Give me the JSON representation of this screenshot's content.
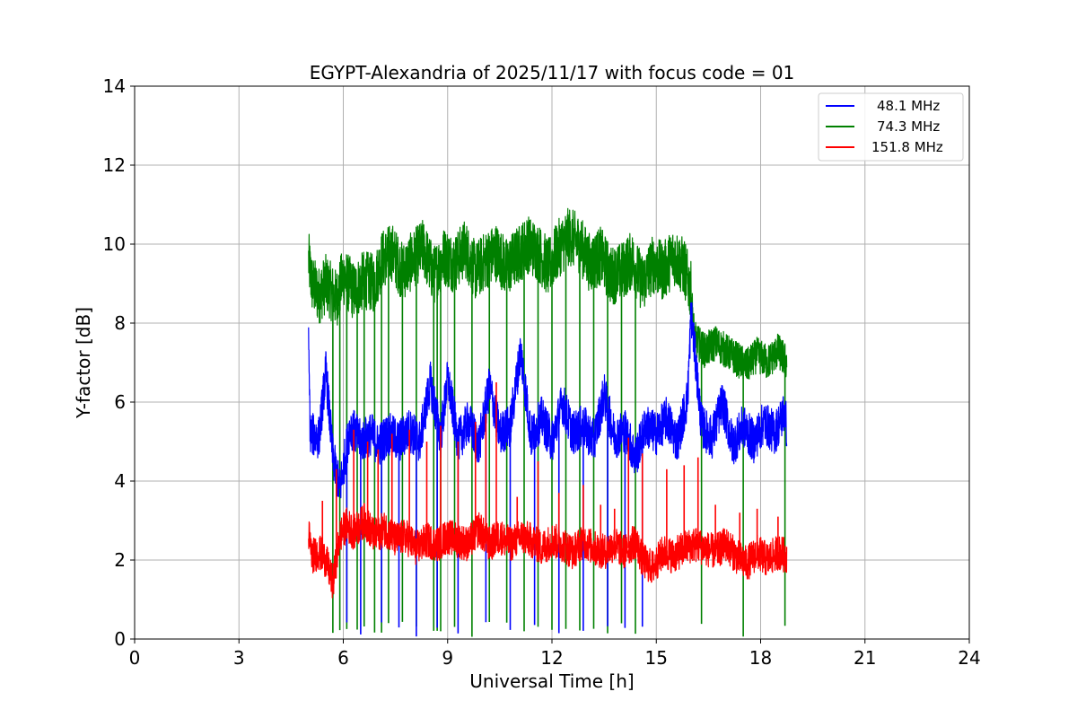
{
  "chart_data": {
    "type": "line",
    "title": "EGYPT-Alexandria of 2025/11/17 with focus code = 01",
    "xlabel": "Universal Time [h]",
    "ylabel": "Y-factor [dB]",
    "xlim": [
      0,
      24
    ],
    "ylim": [
      0,
      14
    ],
    "xticks": [
      0,
      3,
      6,
      9,
      12,
      15,
      18,
      21,
      24
    ],
    "yticks": [
      0,
      2,
      4,
      6,
      8,
      10,
      12,
      14
    ],
    "grid": true,
    "legend_position": "top-right",
    "series": [
      {
        "name": "48.1 MHz",
        "color": "#0000ff",
        "points": [
          [
            5.0,
            7.4
          ],
          [
            5.05,
            5.2
          ],
          [
            5.3,
            5.1
          ],
          [
            5.5,
            6.8
          ],
          [
            5.7,
            4.6
          ],
          [
            5.9,
            3.8
          ],
          [
            6.2,
            5.4
          ],
          [
            6.5,
            5.0
          ],
          [
            6.8,
            5.2
          ],
          [
            7.0,
            4.9
          ],
          [
            7.3,
            5.2
          ],
          [
            7.6,
            5.0
          ],
          [
            7.9,
            5.3
          ],
          [
            8.2,
            5.0
          ],
          [
            8.5,
            6.5
          ],
          [
            8.8,
            5.1
          ],
          [
            9.0,
            6.6
          ],
          [
            9.3,
            5.0
          ],
          [
            9.6,
            5.5
          ],
          [
            9.9,
            4.9
          ],
          [
            10.2,
            6.4
          ],
          [
            10.5,
            5.2
          ],
          [
            10.8,
            5.4
          ],
          [
            11.1,
            7.3
          ],
          [
            11.4,
            5.1
          ],
          [
            11.7,
            5.6
          ],
          [
            12.0,
            5.0
          ],
          [
            12.3,
            6.0
          ],
          [
            12.6,
            5.2
          ],
          [
            12.9,
            5.4
          ],
          [
            13.2,
            5.0
          ],
          [
            13.5,
            6.2
          ],
          [
            13.8,
            5.1
          ],
          [
            14.1,
            5.3
          ],
          [
            14.4,
            4.6
          ],
          [
            14.7,
            5.4
          ],
          [
            15.0,
            5.2
          ],
          [
            15.3,
            5.6
          ],
          [
            15.6,
            5.0
          ],
          [
            15.9,
            6.1
          ],
          [
            16.0,
            8.3
          ],
          [
            16.3,
            5.4
          ],
          [
            16.6,
            5.1
          ],
          [
            16.9,
            6.0
          ],
          [
            17.2,
            4.9
          ],
          [
            17.5,
            5.4
          ],
          [
            17.8,
            5.0
          ],
          [
            18.1,
            5.5
          ],
          [
            18.4,
            5.2
          ],
          [
            18.7,
            5.8
          ],
          [
            18.75,
            5.3
          ]
        ],
        "dropouts": [
          6.1,
          6.5,
          7.1,
          7.6,
          8.1,
          8.7,
          9.3,
          10.1,
          10.8,
          11.5,
          12.2,
          12.9,
          13.6,
          14.1,
          14.6
        ]
      },
      {
        "name": "74.3 MHz",
        "color": "#008000",
        "points": [
          [
            5.0,
            9.6
          ],
          [
            5.1,
            9.0
          ],
          [
            5.3,
            8.7
          ],
          [
            5.5,
            9.0
          ],
          [
            5.8,
            8.6
          ],
          [
            6.0,
            9.2
          ],
          [
            6.3,
            8.8
          ],
          [
            6.6,
            9.1
          ],
          [
            6.9,
            9.0
          ],
          [
            7.1,
            9.6
          ],
          [
            7.4,
            9.8
          ],
          [
            7.7,
            9.3
          ],
          [
            8.0,
            9.6
          ],
          [
            8.3,
            9.9
          ],
          [
            8.6,
            9.2
          ],
          [
            8.9,
            9.7
          ],
          [
            9.2,
            9.5
          ],
          [
            9.5,
            9.9
          ],
          [
            9.8,
            9.3
          ],
          [
            10.1,
            9.6
          ],
          [
            10.4,
            9.8
          ],
          [
            10.7,
            9.4
          ],
          [
            11.0,
            9.7
          ],
          [
            11.3,
            10.0
          ],
          [
            11.6,
            9.8
          ],
          [
            11.9,
            9.4
          ],
          [
            12.2,
            9.9
          ],
          [
            12.5,
            10.2
          ],
          [
            12.8,
            10.0
          ],
          [
            13.1,
            9.5
          ],
          [
            13.4,
            9.7
          ],
          [
            13.7,
            9.2
          ],
          [
            14.0,
            9.3
          ],
          [
            14.3,
            9.6
          ],
          [
            14.6,
            9.0
          ],
          [
            14.9,
            9.5
          ],
          [
            15.2,
            9.3
          ],
          [
            15.5,
            9.7
          ],
          [
            15.8,
            9.4
          ],
          [
            16.0,
            8.8
          ],
          [
            16.1,
            7.6
          ],
          [
            16.4,
            7.3
          ],
          [
            16.7,
            7.5
          ],
          [
            17.0,
            7.3
          ],
          [
            17.3,
            7.1
          ],
          [
            17.6,
            6.9
          ],
          [
            17.9,
            7.2
          ],
          [
            18.2,
            7.0
          ],
          [
            18.5,
            7.3
          ],
          [
            18.75,
            7.0
          ]
        ],
        "dropouts": [
          5.7,
          5.9,
          6.1,
          6.4,
          6.6,
          6.9,
          7.1,
          7.3,
          7.7,
          8.1,
          8.6,
          8.7,
          8.8,
          9.2,
          9.7,
          10.2,
          10.7,
          11.2,
          11.6,
          12.0,
          12.4,
          12.8,
          13.2,
          13.6,
          14.0,
          14.4,
          16.3,
          17.5,
          18.7
        ]
      },
      {
        "name": "151.8 MHz",
        "color": "#ff0000",
        "points": [
          [
            5.0,
            2.7
          ],
          [
            5.1,
            2.1
          ],
          [
            5.3,
            2.2
          ],
          [
            5.5,
            2.0
          ],
          [
            5.7,
            1.4
          ],
          [
            5.9,
            2.6
          ],
          [
            6.1,
            2.9
          ],
          [
            6.3,
            2.7
          ],
          [
            6.6,
            3.0
          ],
          [
            6.9,
            2.6
          ],
          [
            7.2,
            2.8
          ],
          [
            7.5,
            2.5
          ],
          [
            7.8,
            2.6
          ],
          [
            8.1,
            2.3
          ],
          [
            8.4,
            2.5
          ],
          [
            8.7,
            2.4
          ],
          [
            9.0,
            2.6
          ],
          [
            9.3,
            2.5
          ],
          [
            9.6,
            2.4
          ],
          [
            9.9,
            2.8
          ],
          [
            10.2,
            2.4
          ],
          [
            10.5,
            2.6
          ],
          [
            10.8,
            2.4
          ],
          [
            11.1,
            2.6
          ],
          [
            11.4,
            2.5
          ],
          [
            11.7,
            2.3
          ],
          [
            12.0,
            2.5
          ],
          [
            12.3,
            2.4
          ],
          [
            12.6,
            2.2
          ],
          [
            12.9,
            2.5
          ],
          [
            13.2,
            2.3
          ],
          [
            13.5,
            2.2
          ],
          [
            13.8,
            2.4
          ],
          [
            14.1,
            2.2
          ],
          [
            14.4,
            2.5
          ],
          [
            14.6,
            2.0
          ],
          [
            14.9,
            1.8
          ],
          [
            15.2,
            2.2
          ],
          [
            15.5,
            2.1
          ],
          [
            15.8,
            2.3
          ],
          [
            16.1,
            2.4
          ],
          [
            16.4,
            2.3
          ],
          [
            16.7,
            2.2
          ],
          [
            17.0,
            2.4
          ],
          [
            17.3,
            2.1
          ],
          [
            17.6,
            1.9
          ],
          [
            17.9,
            2.2
          ],
          [
            18.2,
            2.0
          ],
          [
            18.5,
            2.2
          ],
          [
            18.75,
            2.1
          ]
        ],
        "spikes": [
          [
            5.4,
            3.5
          ],
          [
            5.8,
            4.3
          ],
          [
            6.3,
            5.3
          ],
          [
            6.7,
            5.0
          ],
          [
            7.0,
            4.8
          ],
          [
            7.4,
            5.2
          ],
          [
            7.9,
            5.3
          ],
          [
            8.4,
            5.0
          ],
          [
            8.8,
            5.4
          ],
          [
            9.3,
            5.0
          ],
          [
            9.8,
            5.5
          ],
          [
            10.1,
            5.7
          ],
          [
            10.4,
            6.5
          ],
          [
            11.0,
            3.6
          ],
          [
            11.6,
            4.5
          ],
          [
            12.2,
            3.7
          ],
          [
            12.9,
            3.9
          ],
          [
            13.4,
            3.4
          ],
          [
            13.8,
            3.3
          ],
          [
            14.2,
            5.1
          ],
          [
            14.6,
            4.7
          ],
          [
            15.3,
            4.3
          ],
          [
            15.8,
            4.4
          ],
          [
            16.2,
            4.6
          ],
          [
            16.7,
            3.4
          ],
          [
            17.4,
            3.2
          ],
          [
            17.9,
            3.3
          ],
          [
            18.5,
            3.1
          ]
        ]
      }
    ]
  }
}
